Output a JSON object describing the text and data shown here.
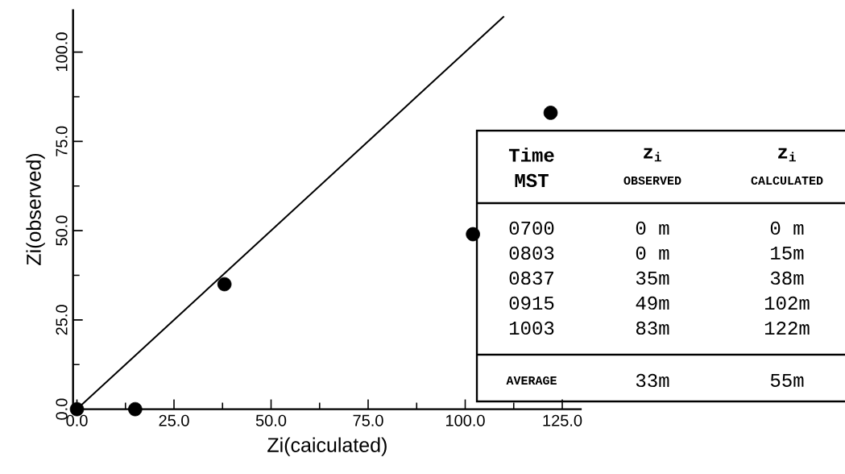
{
  "chart_data": {
    "type": "scatter",
    "xlabel": "Zi(caiculated)",
    "ylabel": "Zi(observed)",
    "xlim": [
      -1,
      130
    ],
    "ylim": [
      0,
      112
    ],
    "xticks": [
      {
        "value": 0,
        "label": "0.0"
      },
      {
        "value": 12.5,
        "label": null
      },
      {
        "value": 25,
        "label": "25.0"
      },
      {
        "value": 37.5,
        "label": null
      },
      {
        "value": 50,
        "label": "50.0"
      },
      {
        "value": 62.5,
        "label": null
      },
      {
        "value": 75,
        "label": "75.0"
      },
      {
        "value": 87.5,
        "label": null
      },
      {
        "value": 100,
        "label": "100.0"
      },
      {
        "value": 112.5,
        "label": null
      },
      {
        "value": 125,
        "label": "125.0"
      }
    ],
    "yticks": [
      {
        "value": 0,
        "label": "0.0"
      },
      {
        "value": 12.5,
        "label": null
      },
      {
        "value": 25,
        "label": "25.0"
      },
      {
        "value": 37.5,
        "label": null
      },
      {
        "value": 50,
        "label": "50.0"
      },
      {
        "value": 62.5,
        "label": null
      },
      {
        "value": 75,
        "label": "75.0"
      },
      {
        "value": 87.5,
        "label": null
      },
      {
        "value": 100,
        "label": "100.0"
      }
    ],
    "series": [
      {
        "type": "scatter",
        "marker": "circle",
        "color": "#000000",
        "x": [
          0,
          15,
          38,
          102,
          122
        ],
        "values": [
          0,
          0,
          35,
          49,
          83
        ]
      },
      {
        "type": "line",
        "marker": "none",
        "color": "#000000",
        "line_style": "solid",
        "x": [
          0,
          110
        ],
        "values": [
          0,
          110
        ]
      }
    ],
    "annotations": [
      "Time",
      "z$_{i}$",
      "z$_{i}$",
      "MST",
      "OBSERVED",
      "CALCULATED",
      "0700",
      "0 m",
      "0 m",
      "0803",
      "0 m",
      "15m",
      "0837",
      "35m",
      "38m",
      "0915",
      "49m",
      "102m",
      "1003",
      "83m",
      "122m",
      "AVERAGE",
      "33m",
      "55m"
    ]
  }
}
